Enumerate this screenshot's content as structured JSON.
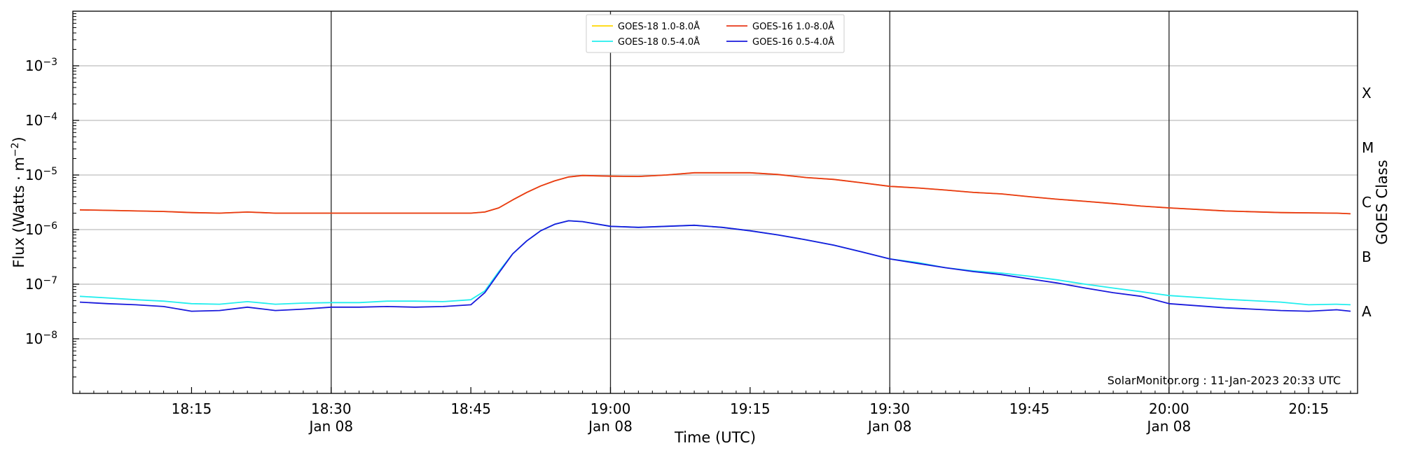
{
  "chart_data": {
    "type": "line",
    "credit": "SolarMonitor.org : 11-Jan-2023 20:33 UTC",
    "xlabel": "Time (UTC)",
    "ylabel": {
      "base": "Flux (Watts · m",
      "sup": "−2",
      "close": ")"
    },
    "right_label": "GOES Class",
    "xlim": [
      1.5,
      93.5
    ],
    "ylim_log10": [
      -9,
      -2
    ],
    "y_scale": "log",
    "grid": "horizontal",
    "legend_position": "top-center",
    "x_ticks": [
      {
        "at": 10,
        "time": "18:15",
        "date": ""
      },
      {
        "at": 20,
        "time": "18:30",
        "date": "Jan 08"
      },
      {
        "at": 30,
        "time": "18:45",
        "date": ""
      },
      {
        "at": 40,
        "time": "19:00",
        "date": "Jan 08"
      },
      {
        "at": 50,
        "time": "19:15",
        "date": ""
      },
      {
        "at": 60,
        "time": "19:30",
        "date": "Jan 08"
      },
      {
        "at": 70,
        "time": "19:45",
        "date": ""
      },
      {
        "at": 80,
        "time": "20:00",
        "date": "Jan 08"
      },
      {
        "at": 90,
        "time": "20:15",
        "date": ""
      }
    ],
    "vertical_lines_at": [
      20,
      40,
      60,
      80
    ],
    "y_ticks": [
      {
        "exp": -8,
        "base": "10",
        "sup": "−8"
      },
      {
        "exp": -7,
        "base": "10",
        "sup": "−7"
      },
      {
        "exp": -6,
        "base": "10",
        "sup": "−6"
      },
      {
        "exp": -5,
        "base": "10",
        "sup": "−5"
      },
      {
        "exp": -4,
        "base": "10",
        "sup": "−4"
      },
      {
        "exp": -3,
        "base": "10",
        "sup": "−3"
      }
    ],
    "class_labels": [
      {
        "label": "A",
        "exp": -7.5
      },
      {
        "label": "B",
        "exp": -6.5
      },
      {
        "label": "C",
        "exp": -5.5
      },
      {
        "label": "M",
        "exp": -4.5
      },
      {
        "label": "X",
        "exp": -3.5
      }
    ],
    "legend": [
      {
        "series": 0,
        "text": "GOES-18 1.0-8.0Å"
      },
      {
        "series": 1,
        "text": "GOES-18 0.5-4.0Å"
      },
      {
        "series": 2,
        "text": "GOES-16 1.0-8.0Å"
      },
      {
        "series": 3,
        "text": "GOES-16 0.5-4.0Å"
      }
    ],
    "series": [
      {
        "name": "GOES-18 1.0-8.0Å",
        "color": "#ffd700",
        "x": [
          2,
          4,
          8,
          10,
          12,
          14,
          16,
          20,
          25,
          30,
          31,
          32,
          33,
          34,
          35,
          36,
          37,
          38,
          40,
          42,
          44,
          46,
          48,
          50,
          52,
          54,
          56,
          58,
          60,
          62,
          64,
          66,
          68,
          70,
          72,
          74,
          76,
          78,
          80,
          84,
          88,
          92,
          93
        ],
        "y": [
          2.3e-06,
          2.25e-06,
          2.15e-06,
          2.05e-06,
          2e-06,
          2.1e-06,
          2e-06,
          2e-06,
          2e-06,
          2e-06,
          2.1e-06,
          2.5e-06,
          3.5e-06,
          4.8e-06,
          6.3e-06,
          7.8e-06,
          9.2e-06,
          9.8e-06,
          9.5e-06,
          9.4e-06,
          1e-05,
          1.1e-05,
          1.1e-05,
          1.1e-05,
          1.02e-05,
          9e-06,
          8.3e-06,
          7.2e-06,
          6.2e-06,
          5.8e-06,
          5.3e-06,
          4.8e-06,
          4.5e-06,
          4e-06,
          3.6e-06,
          3.3e-06,
          3e-06,
          2.7e-06,
          2.5e-06,
          2.2e-06,
          2.05e-06,
          2e-06,
          1.95e-06
        ]
      },
      {
        "name": "GOES-18 0.5-4.0Å",
        "color": "#22eeee",
        "x": [
          2,
          4,
          6,
          8,
          10,
          12,
          14,
          16,
          18,
          20,
          22,
          24,
          26,
          28,
          30,
          31,
          32,
          33,
          34,
          35,
          36,
          37,
          38,
          40,
          42,
          44,
          46,
          48,
          50,
          52,
          54,
          56,
          58,
          60,
          62,
          64,
          66,
          68,
          70,
          72,
          74,
          76,
          78,
          80,
          84,
          88,
          90,
          92,
          93
        ],
        "y": [
          6e-08,
          5.6e-08,
          5.2e-08,
          4.9e-08,
          4.4e-08,
          4.3e-08,
          4.8e-08,
          4.3e-08,
          4.5e-08,
          4.6e-08,
          4.6e-08,
          4.9e-08,
          4.9e-08,
          4.8e-08,
          5.2e-08,
          7.5e-08,
          1.7e-07,
          3.6e-07,
          6.2e-07,
          9.5e-07,
          1.25e-06,
          1.45e-06,
          1.4e-06,
          1.15e-06,
          1.1e-06,
          1.15e-06,
          1.2e-06,
          1.1e-06,
          9.5e-07,
          8e-07,
          6.5e-07,
          5.2e-07,
          3.9e-07,
          2.9e-07,
          2.5e-07,
          2e-07,
          1.75e-07,
          1.6e-07,
          1.4e-07,
          1.2e-07,
          1e-07,
          8.5e-08,
          7.3e-08,
          6.2e-08,
          5.3e-08,
          4.7e-08,
          4.2e-08,
          4.3e-08,
          4.2e-08
        ]
      },
      {
        "name": "GOES-16 1.0-8.0Å",
        "color": "#e8381a",
        "x": [
          2,
          4,
          8,
          10,
          12,
          14,
          16,
          20,
          25,
          30,
          31,
          32,
          33,
          34,
          35,
          36,
          37,
          38,
          40,
          42,
          44,
          46,
          48,
          50,
          52,
          54,
          56,
          58,
          60,
          62,
          64,
          66,
          68,
          70,
          72,
          74,
          76,
          78,
          80,
          84,
          88,
          92,
          93
        ],
        "y": [
          2.3e-06,
          2.25e-06,
          2.15e-06,
          2.05e-06,
          2e-06,
          2.1e-06,
          2e-06,
          2e-06,
          2e-06,
          2e-06,
          2.1e-06,
          2.5e-06,
          3.5e-06,
          4.8e-06,
          6.3e-06,
          7.8e-06,
          9.2e-06,
          9.8e-06,
          9.5e-06,
          9.4e-06,
          1e-05,
          1.1e-05,
          1.1e-05,
          1.1e-05,
          1.02e-05,
          9e-06,
          8.3e-06,
          7.2e-06,
          6.2e-06,
          5.8e-06,
          5.3e-06,
          4.8e-06,
          4.5e-06,
          4e-06,
          3.6e-06,
          3.3e-06,
          3e-06,
          2.7e-06,
          2.5e-06,
          2.2e-06,
          2.05e-06,
          2e-06,
          1.95e-06
        ]
      },
      {
        "name": "GOES-16 0.5-4.0Å",
        "color": "#1a1adc",
        "x": [
          2,
          4,
          6,
          8,
          10,
          12,
          14,
          16,
          18,
          20,
          22,
          24,
          26,
          28,
          30,
          31,
          32,
          33,
          34,
          35,
          36,
          37,
          38,
          40,
          42,
          44,
          46,
          48,
          50,
          52,
          54,
          56,
          58,
          60,
          62,
          64,
          66,
          68,
          70,
          72,
          74,
          76,
          78,
          80,
          84,
          88,
          90,
          92,
          93
        ],
        "y": [
          4.7e-08,
          4.4e-08,
          4.2e-08,
          3.9e-08,
          3.2e-08,
          3.3e-08,
          3.8e-08,
          3.3e-08,
          3.5e-08,
          3.8e-08,
          3.8e-08,
          3.9e-08,
          3.8e-08,
          3.9e-08,
          4.2e-08,
          7e-08,
          1.6e-07,
          3.6e-07,
          6.2e-07,
          9.5e-07,
          1.25e-06,
          1.45e-06,
          1.4e-06,
          1.15e-06,
          1.1e-06,
          1.15e-06,
          1.2e-06,
          1.1e-06,
          9.5e-07,
          8e-07,
          6.5e-07,
          5.2e-07,
          3.9e-07,
          2.9e-07,
          2.4e-07,
          2e-07,
          1.7e-07,
          1.5e-07,
          1.25e-07,
          1.05e-07,
          8.5e-08,
          7e-08,
          6e-08,
          4.4e-08,
          3.7e-08,
          3.3e-08,
          3.2e-08,
          3.4e-08,
          3.2e-08
        ]
      }
    ]
  }
}
